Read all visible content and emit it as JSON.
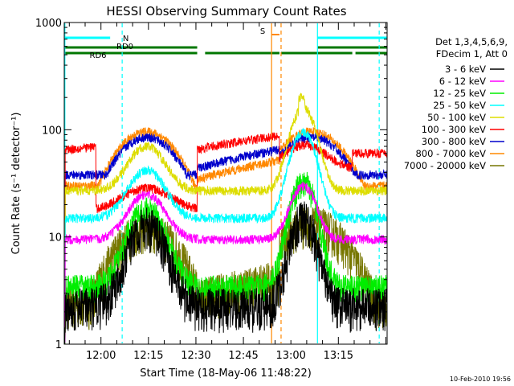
{
  "chart_data": {
    "type": "line",
    "title": "HESSI Observing Summary Count Rates",
    "xlabel": "Start Time (18-May-06 11:48:22)",
    "ylabel": "Count Rate (s⁻¹ detector⁻¹)",
    "ylog": true,
    "ylim": [
      1,
      1000
    ],
    "xlim_minutes_after_start": [
      0,
      102
    ],
    "x_tick_labels": [
      {
        "label": "12:00",
        "t": 11.6
      },
      {
        "label": "12:15",
        "t": 26.6
      },
      {
        "label": "12:30",
        "t": 41.6
      },
      {
        "label": "12:45",
        "t": 56.6
      },
      {
        "label": "13:00",
        "t": 71.6
      },
      {
        "label": "13:15",
        "t": 86.6
      }
    ],
    "y_tick_labels": [
      {
        "label": "1",
        "v": 1
      },
      {
        "label": "10",
        "v": 10
      },
      {
        "label": "100",
        "v": 100
      },
      {
        "label": "1000",
        "v": 1000
      }
    ],
    "legend_position": "right",
    "legend_header": [
      "Det 1,3,4,5,6,9,",
      "FDecim 1, Att 0"
    ],
    "series": [
      {
        "name": "3 - 6 keV",
        "color": "#000000",
        "base": 2.3,
        "p1": 13,
        "p2": 15
      },
      {
        "name": "6 - 12 keV",
        "color": "#ff00ff",
        "base": 9.5,
        "p1": 25,
        "p2": 30
      },
      {
        "name": "12 - 25 keV",
        "color": "#00ee00",
        "base": 3.4,
        "p1": 18,
        "p2": 33
      },
      {
        "name": "25 - 50 keV",
        "color": "#00ffff",
        "base": 15,
        "p1": 42,
        "p2": 95
      },
      {
        "name": "50 - 100 keV",
        "color": "#dddd00",
        "base": 27,
        "p1": 70,
        "p2": 160
      },
      {
        "name": "100 - 300 keV",
        "color": "#ff0000",
        "base": 55,
        "p1": 20,
        "p2": 72
      },
      {
        "name": "300 - 800 keV",
        "color": "#0000cc",
        "base": 38,
        "p1": 85,
        "p2": 85
      },
      {
        "name": "800 - 7000 keV",
        "color": "#ff8800",
        "base": 30,
        "p1": 96,
        "p2": 96
      },
      {
        "name": "7000 - 20000 keV",
        "color": "#777700",
        "base": 2.4,
        "p1": 12,
        "p2": 13.5
      }
    ],
    "flag_bars": [
      {
        "label": "N",
        "color": "#00ffff",
        "segments": [
          [
            0,
            14.5
          ],
          [
            80,
            102
          ]
        ]
      },
      {
        "label": "RD0",
        "color": "#007700",
        "segments": [
          [
            0,
            42
          ],
          [
            80,
            102
          ]
        ]
      },
      {
        "label": "RD6",
        "color": "#007700",
        "segments": [
          [
            0,
            42
          ],
          [
            44.5,
            68
          ],
          [
            68.5,
            91
          ],
          [
            92,
            102
          ]
        ]
      },
      {
        "label": "S",
        "color": "#ff8800",
        "segments": [
          [
            65.5,
            68
          ]
        ]
      }
    ],
    "vertical_markers": [
      {
        "t": 0.2,
        "color": "#00ffff",
        "style": "solid"
      },
      {
        "t": 18.3,
        "color": "#00ffff",
        "style": "dashed"
      },
      {
        "t": 65.5,
        "color": "#ff8800",
        "style": "solid"
      },
      {
        "t": 68.5,
        "color": "#ff8800",
        "style": "dashed"
      },
      {
        "t": 80.0,
        "color": "#00ffff",
        "style": "solid"
      },
      {
        "t": 99.5,
        "color": "#00ffff",
        "style": "dashed"
      }
    ],
    "timestamp": "10-Feb-2010 19:56"
  }
}
